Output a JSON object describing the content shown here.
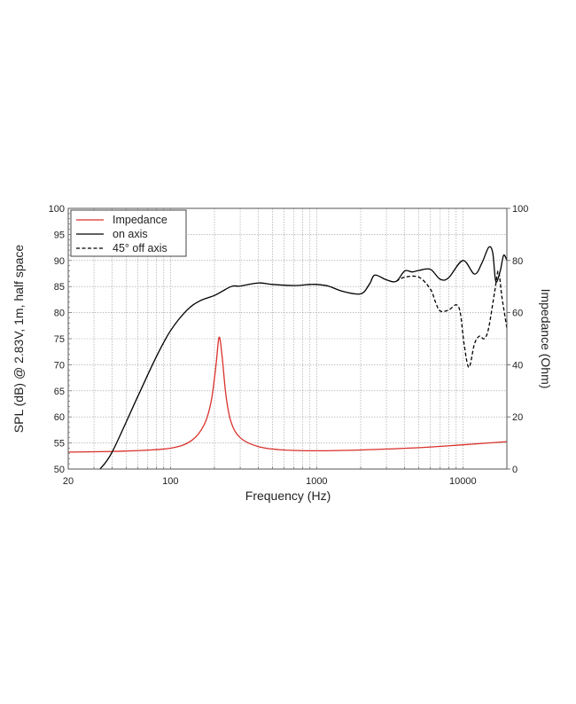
{
  "chart_data": {
    "type": "line",
    "xlabel": "Frequency (Hz)",
    "ylabel": "SPL (dB) @ 2.83V, 1m, half space",
    "y2label": "Impedance (Ohm)",
    "xscale": "log",
    "xlim": [
      20,
      20000
    ],
    "ylim": [
      50,
      100
    ],
    "y2lim": [
      0,
      100
    ],
    "xticks": [
      {
        "v": 20,
        "label": "20"
      },
      {
        "v": 100,
        "label": "100"
      },
      {
        "v": 1000,
        "label": "1000"
      },
      {
        "v": 10000,
        "label": "10000"
      }
    ],
    "yticks": [
      "50",
      "55",
      "60",
      "65",
      "70",
      "75",
      "80",
      "85",
      "90",
      "95",
      "100"
    ],
    "y2ticks": [
      "0",
      "20",
      "40",
      "60",
      "80",
      "100"
    ],
    "grid": true,
    "legend_position": "top-left",
    "colors": {
      "impedance": "#d9302a",
      "on_axis": "#000000",
      "off_axis": "#000000",
      "grid": "#9a9a9a"
    },
    "series": [
      {
        "name": "Impedance",
        "axis": "right",
        "style": "solid",
        "color": "#d9302a",
        "points": [
          [
            20,
            6.5
          ],
          [
            50,
            6.9
          ],
          [
            100,
            8
          ],
          [
            140,
            11
          ],
          [
            170,
            17
          ],
          [
            190,
            26
          ],
          [
            205,
            40
          ],
          [
            215,
            50.5
          ],
          [
            225,
            44
          ],
          [
            240,
            28
          ],
          [
            260,
            18
          ],
          [
            300,
            12
          ],
          [
            400,
            8.6
          ],
          [
            600,
            7.3
          ],
          [
            1000,
            7
          ],
          [
            2000,
            7.3
          ],
          [
            5000,
            8.2
          ],
          [
            10000,
            9.3
          ],
          [
            20000,
            10.5
          ]
        ]
      },
      {
        "name": "on axis",
        "axis": "left",
        "style": "solid",
        "color": "#000000",
        "points": [
          [
            33,
            50
          ],
          [
            40,
            53.3
          ],
          [
            60,
            64
          ],
          [
            80,
            71.5
          ],
          [
            100,
            76.5
          ],
          [
            130,
            80.5
          ],
          [
            160,
            82.3
          ],
          [
            200,
            83.3
          ],
          [
            260,
            85
          ],
          [
            300,
            85.1
          ],
          [
            400,
            85.7
          ],
          [
            500,
            85.4
          ],
          [
            700,
            85.2
          ],
          [
            900,
            85.4
          ],
          [
            1000,
            85.4
          ],
          [
            1200,
            85.1
          ],
          [
            1500,
            84.1
          ],
          [
            2000,
            83.6
          ],
          [
            2300,
            85.5
          ],
          [
            2500,
            87.2
          ],
          [
            3000,
            86.3
          ],
          [
            3500,
            86
          ],
          [
            4000,
            88
          ],
          [
            4500,
            87.8
          ],
          [
            5000,
            88.1
          ],
          [
            6000,
            88.3
          ],
          [
            7000,
            86.4
          ],
          [
            8000,
            86.7
          ],
          [
            10000,
            90
          ],
          [
            12000,
            87.4
          ],
          [
            13500,
            89.5
          ],
          [
            15000,
            92.5
          ],
          [
            16000,
            91.5
          ],
          [
            16800,
            86
          ],
          [
            18000,
            88
          ],
          [
            19000,
            91
          ],
          [
            20000,
            90
          ]
        ]
      },
      {
        "name": "45° off axis",
        "axis": "left",
        "style": "dashed",
        "color": "#000000",
        "points": [
          [
            3500,
            86
          ],
          [
            4000,
            86.8
          ],
          [
            5000,
            86.8
          ],
          [
            6000,
            84.5
          ],
          [
            6500,
            82
          ],
          [
            7000,
            80.3
          ],
          [
            8000,
            80.5
          ],
          [
            9000,
            81.5
          ],
          [
            9600,
            80
          ],
          [
            10200,
            74
          ],
          [
            11000,
            69.5
          ],
          [
            12000,
            74
          ],
          [
            13000,
            75.5
          ],
          [
            14000,
            75
          ],
          [
            15000,
            77
          ],
          [
            16500,
            84
          ],
          [
            17500,
            88
          ],
          [
            18500,
            83
          ],
          [
            20000,
            77
          ]
        ]
      }
    ]
  }
}
